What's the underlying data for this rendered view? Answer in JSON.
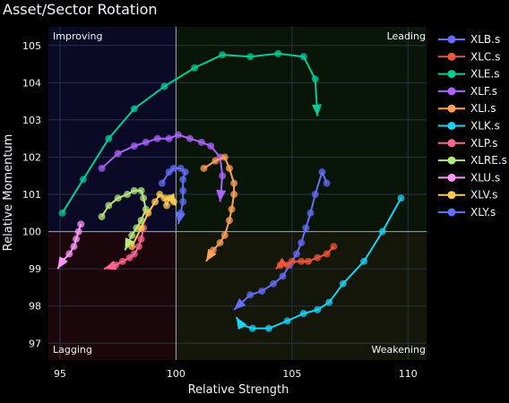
{
  "chart_data": {
    "type": "line",
    "title": "Asset/Sector Rotation",
    "xlabel": "Relative Strength",
    "ylabel": "Relative Momentum",
    "xlim": [
      94.5,
      110.8
    ],
    "ylim": [
      96.55,
      105.5
    ],
    "xticks": [
      95,
      100,
      105,
      110
    ],
    "yticks": [
      97,
      98,
      99,
      100,
      101,
      102,
      103,
      104,
      105
    ],
    "grid": true,
    "legend_position": "right",
    "center": {
      "x": 100,
      "y": 100
    },
    "quadrants": {
      "top_left": "Improving",
      "top_right": "Leading",
      "bottom_left": "Lagging",
      "bottom_right": "Weakening"
    },
    "quadrant_colors": {
      "top_left": "#0a0a26",
      "top_right": "#0a1509",
      "bottom_left": "#1a060b",
      "bottom_right": "#14160a"
    },
    "series": [
      {
        "name": "XLB.s",
        "color": "#636efa",
        "x": [
          106.5,
          106.3,
          106.0,
          105.8,
          105.6,
          105.4,
          105.2,
          104.9,
          104.6,
          104.2,
          103.7,
          103.2,
          102.5
        ],
        "y": [
          101.3,
          101.6,
          101.0,
          100.5,
          100.1,
          99.7,
          99.4,
          99.1,
          98.8,
          98.6,
          98.4,
          98.3,
          97.9
        ]
      },
      {
        "name": "XLC.s",
        "color": "#ef553b",
        "x": [
          106.8,
          106.5,
          106.1,
          105.7,
          105.4,
          105.0,
          104.8,
          104.5,
          104.3
        ],
        "y": [
          99.6,
          99.4,
          99.3,
          99.2,
          99.2,
          99.2,
          99.1,
          99.1,
          99.0
        ]
      },
      {
        "name": "XLE.s",
        "color": "#00cc96",
        "x": [
          95.1,
          96.0,
          97.1,
          98.2,
          99.5,
          100.8,
          102.0,
          103.2,
          104.4,
          105.5,
          106.0,
          106.1
        ],
        "y": [
          100.5,
          101.4,
          102.5,
          103.3,
          103.9,
          104.4,
          104.75,
          104.7,
          104.78,
          104.7,
          104.1,
          103.1
        ]
      },
      {
        "name": "XLF.s",
        "color": "#ab63fa",
        "x": [
          96.8,
          97.5,
          98.2,
          98.7,
          99.2,
          99.7,
          100.1,
          100.6,
          101.1,
          101.5,
          101.9,
          102.0,
          101.9
        ],
        "y": [
          101.7,
          102.1,
          102.3,
          102.4,
          102.5,
          102.5,
          102.6,
          102.5,
          102.4,
          102.3,
          102.0,
          101.5,
          100.8
        ]
      },
      {
        "name": "XLI.s",
        "color": "#ffa15a",
        "x": [
          101.2,
          101.7,
          102.1,
          102.3,
          102.5,
          102.5,
          102.4,
          102.3,
          102.1,
          101.9,
          101.6,
          101.3
        ],
        "y": [
          101.7,
          101.9,
          102.0,
          101.7,
          101.3,
          101.0,
          100.6,
          100.3,
          99.9,
          99.7,
          99.5,
          99.2
        ]
      },
      {
        "name": "XLK.s",
        "color": "#19d3f3",
        "x": [
          109.7,
          108.9,
          108.1,
          107.2,
          106.6,
          106.1,
          105.5,
          104.8,
          104.0,
          103.3,
          102.8,
          102.6
        ],
        "y": [
          100.9,
          100.0,
          99.2,
          98.6,
          98.1,
          97.9,
          97.8,
          97.6,
          97.4,
          97.4,
          97.5,
          97.7
        ]
      },
      {
        "name": "XLP.s",
        "color": "#ff6692",
        "x": [
          98.6,
          98.5,
          98.4,
          98.2,
          98.0,
          97.7,
          97.4,
          96.9
        ],
        "y": [
          100.1,
          99.8,
          99.6,
          99.4,
          99.3,
          99.2,
          99.1,
          99.0
        ]
      },
      {
        "name": "XLRE.s",
        "color": "#b6e880",
        "x": [
          96.8,
          97.1,
          97.5,
          97.9,
          98.2,
          98.5,
          98.6,
          98.7,
          98.5,
          98.3,
          98.1,
          97.8
        ],
        "y": [
          100.4,
          100.7,
          100.9,
          101.0,
          101.1,
          101.1,
          100.9,
          100.6,
          100.3,
          100.1,
          99.9,
          99.5
        ]
      },
      {
        "name": "XLU.s",
        "color": "#ff97ff",
        "x": [
          95.9,
          95.8,
          95.7,
          95.6,
          95.4,
          95.1,
          94.9
        ],
        "y": [
          100.2,
          100.0,
          99.8,
          99.6,
          99.4,
          99.2,
          99.0
        ]
      },
      {
        "name": "XLV.s",
        "color": "#fecb52",
        "x": [
          98.1,
          98.5,
          98.8,
          99.1,
          99.3,
          99.5,
          99.6,
          99.7,
          99.9,
          100.0
        ],
        "y": [
          99.6,
          100.1,
          100.5,
          100.8,
          101.0,
          100.9,
          100.7,
          100.9,
          100.8,
          100.7
        ]
      },
      {
        "name": "XLY.s",
        "color": "#636efa",
        "x": [
          99.4,
          99.7,
          99.9,
          100.2,
          100.4,
          100.3,
          100.3,
          100.3,
          100.2,
          100.1
        ],
        "y": [
          101.3,
          101.6,
          101.7,
          101.7,
          101.6,
          101.4,
          101.1,
          100.8,
          100.5,
          100.2
        ]
      }
    ]
  }
}
